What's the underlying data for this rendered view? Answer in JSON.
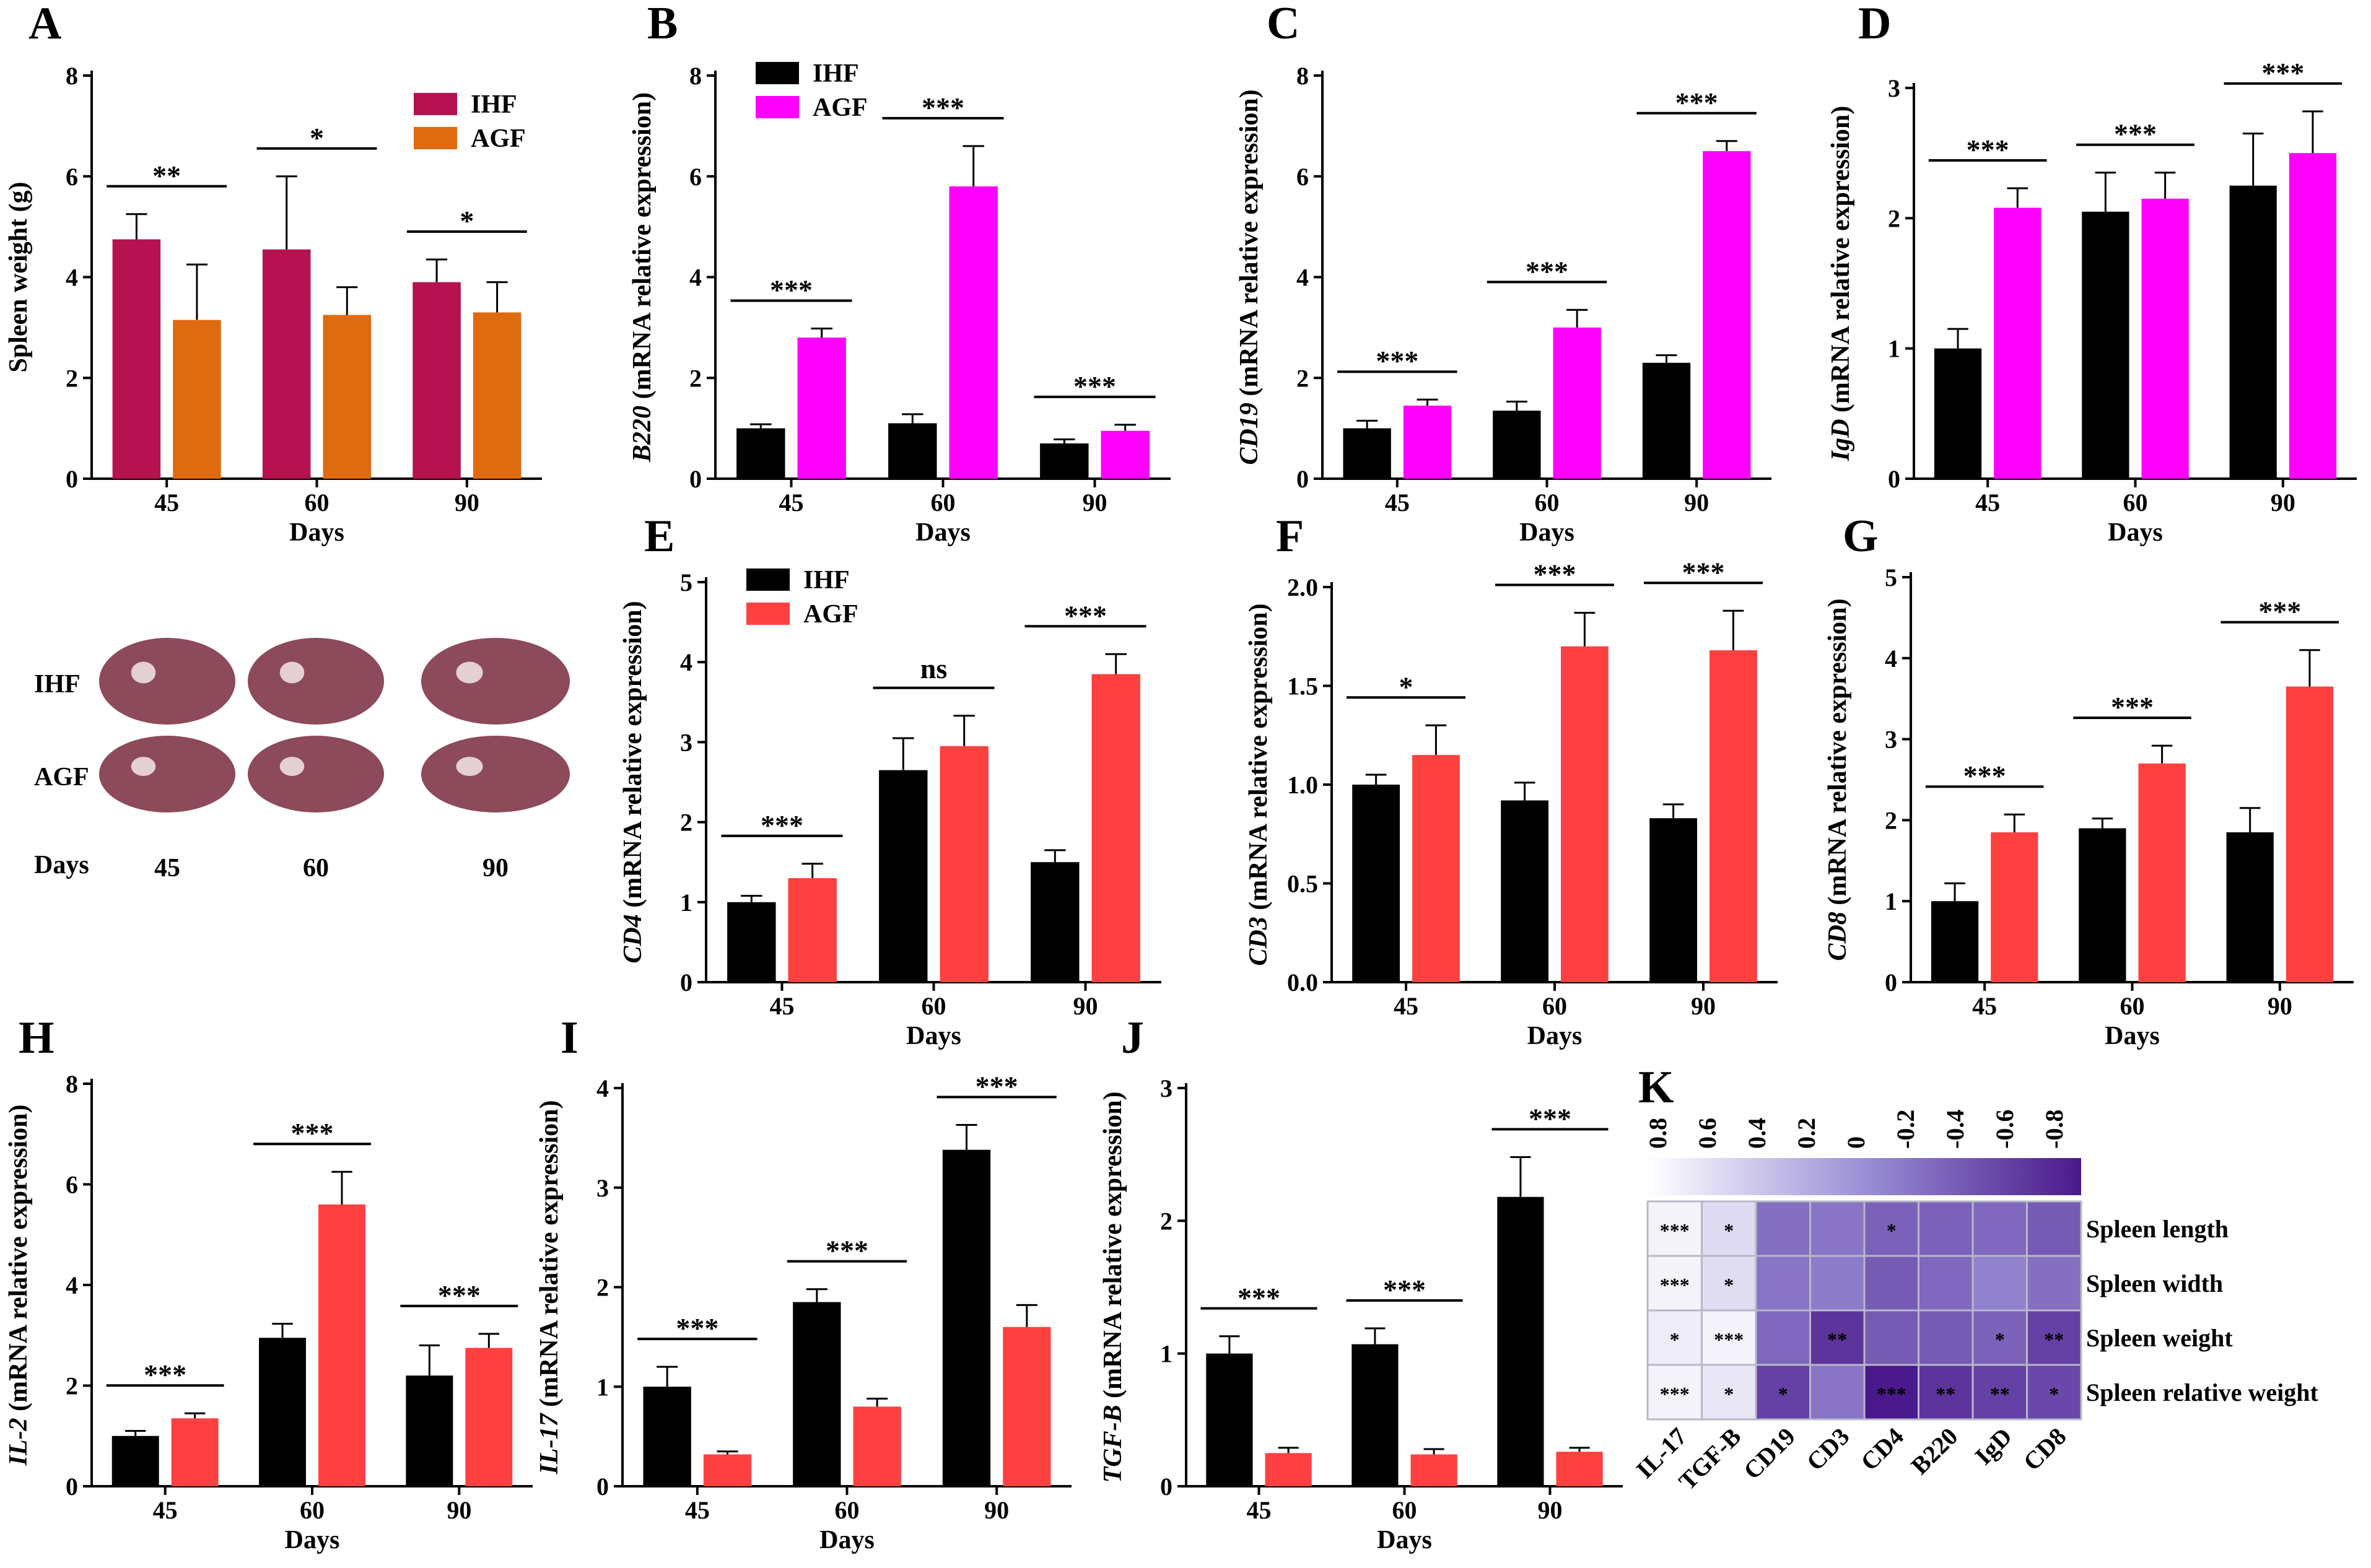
{
  "chart_data": [
    {
      "panel": "A",
      "type": "bar",
      "title": "",
      "xlabel": "Days",
      "ylabel": "Spleen weight (g)",
      "ylim": [
        0,
        8
      ],
      "yticks": [
        0,
        2,
        4,
        6,
        8
      ],
      "categories": [
        "45",
        "60",
        "90"
      ],
      "series": [
        {
          "name": "IHF",
          "color": "#b5124f",
          "values": [
            4.75,
            4.55,
            3.9
          ],
          "errors": [
            0.5,
            1.45,
            0.45
          ]
        },
        {
          "name": "AGF",
          "color": "#e06a10",
          "values": [
            3.15,
            3.25,
            3.3
          ],
          "errors": [
            1.1,
            0.55,
            0.6
          ]
        }
      ],
      "significance": [
        "**",
        "*",
        "*"
      ],
      "legend": "top-right"
    },
    {
      "panel": "B",
      "type": "bar",
      "xlabel": "Days",
      "ylabel": "(mRNA relative expression)",
      "ylabel_gene": "B220",
      "ylim": [
        0,
        8
      ],
      "yticks": [
        0,
        2,
        4,
        6,
        8
      ],
      "categories": [
        "45",
        "60",
        "90"
      ],
      "series": [
        {
          "name": "IHF",
          "color": "#000000",
          "values": [
            1.0,
            1.1,
            0.7
          ],
          "errors": [
            0.08,
            0.18,
            0.08
          ]
        },
        {
          "name": "AGF",
          "color": "#ff00ff",
          "values": [
            2.8,
            5.8,
            0.95
          ],
          "errors": [
            0.18,
            0.8,
            0.12
          ]
        }
      ],
      "significance": [
        "***",
        "***",
        "***"
      ],
      "legend": "top-left"
    },
    {
      "panel": "C",
      "type": "bar",
      "xlabel": "Days",
      "ylabel": "(mRNA relative expression)",
      "ylabel_gene": "CD19",
      "ylim": [
        0,
        8
      ],
      "yticks": [
        0,
        2,
        4,
        6,
        8
      ],
      "categories": [
        "45",
        "60",
        "90"
      ],
      "series": [
        {
          "name": "IHF",
          "color": "#000000",
          "values": [
            1.0,
            1.35,
            2.3
          ],
          "errors": [
            0.15,
            0.18,
            0.15
          ]
        },
        {
          "name": "AGF",
          "color": "#ff00ff",
          "values": [
            1.45,
            3.0,
            6.5
          ],
          "errors": [
            0.12,
            0.35,
            0.2
          ]
        }
      ],
      "significance": [
        "***",
        "***",
        "***"
      ]
    },
    {
      "panel": "D",
      "type": "bar",
      "xlabel": "Days",
      "ylabel": "(mRNA relative expression)",
      "ylabel_gene": "IgD",
      "ylim": [
        0,
        3
      ],
      "yticks": [
        0,
        1,
        2,
        3
      ],
      "categories": [
        "45",
        "60",
        "90"
      ],
      "series": [
        {
          "name": "IHF",
          "color": "#000000",
          "values": [
            1.0,
            2.05,
            2.25
          ],
          "errors": [
            0.15,
            0.3,
            0.4
          ]
        },
        {
          "name": "AGF",
          "color": "#ff00ff",
          "values": [
            2.08,
            2.15,
            2.5
          ],
          "errors": [
            0.15,
            0.2,
            0.32
          ]
        }
      ],
      "significance": [
        "***",
        "***",
        "***"
      ]
    },
    {
      "panel": "E",
      "type": "bar",
      "xlabel": "Days",
      "ylabel": "(mRNA relative expression)",
      "ylabel_gene": "CD4",
      "ylim": [
        0,
        5
      ],
      "yticks": [
        0,
        1,
        2,
        3,
        4,
        5
      ],
      "categories": [
        "45",
        "60",
        "90"
      ],
      "series": [
        {
          "name": "IHF",
          "color": "#000000",
          "values": [
            1.0,
            2.65,
            1.5
          ],
          "errors": [
            0.08,
            0.4,
            0.15
          ]
        },
        {
          "name": "AGF",
          "color": "#ff4040",
          "values": [
            1.3,
            2.95,
            3.85
          ],
          "errors": [
            0.18,
            0.38,
            0.25
          ]
        }
      ],
      "significance": [
        "***",
        "ns",
        "***"
      ],
      "legend": "top-left"
    },
    {
      "panel": "F",
      "type": "bar",
      "xlabel": "Days",
      "ylabel": "(mRNA relative expression)",
      "ylabel_gene": "CD3",
      "ylim": [
        0,
        2
      ],
      "yticks": [
        "0.0",
        "0.5",
        "1.0",
        "1.5",
        "2.0"
      ],
      "categories": [
        "45",
        "60",
        "90"
      ],
      "series": [
        {
          "name": "IHF",
          "color": "#000000",
          "values": [
            1.0,
            0.92,
            0.83
          ],
          "errors": [
            0.05,
            0.09,
            0.07
          ]
        },
        {
          "name": "AGF",
          "color": "#ff4040",
          "values": [
            1.15,
            1.7,
            1.68
          ],
          "errors": [
            0.15,
            0.17,
            0.2
          ]
        }
      ],
      "significance": [
        "*",
        "***",
        "***"
      ]
    },
    {
      "panel": "G",
      "type": "bar",
      "xlabel": "Days",
      "ylabel": "(mRNA relative expression)",
      "ylabel_gene": "CD8",
      "ylim": [
        0,
        5
      ],
      "yticks": [
        0,
        1,
        2,
        3,
        4,
        5
      ],
      "categories": [
        "45",
        "60",
        "90"
      ],
      "series": [
        {
          "name": "IHF",
          "color": "#000000",
          "values": [
            1.0,
            1.9,
            1.85
          ],
          "errors": [
            0.22,
            0.12,
            0.3
          ]
        },
        {
          "name": "AGF",
          "color": "#ff4040",
          "values": [
            1.85,
            2.7,
            3.65
          ],
          "errors": [
            0.22,
            0.22,
            0.45
          ]
        }
      ],
      "significance": [
        "***",
        "***",
        "***"
      ]
    },
    {
      "panel": "H",
      "type": "bar",
      "xlabel": "Days",
      "ylabel": "(mRNA relative expression)",
      "ylabel_gene": "IL-2",
      "ylim": [
        0,
        8
      ],
      "yticks": [
        0,
        2,
        4,
        6,
        8
      ],
      "categories": [
        "45",
        "60",
        "90"
      ],
      "series": [
        {
          "name": "IHF",
          "color": "#000000",
          "values": [
            1.0,
            2.95,
            2.2
          ],
          "errors": [
            0.1,
            0.28,
            0.6
          ]
        },
        {
          "name": "AGF",
          "color": "#ff4040",
          "values": [
            1.35,
            5.6,
            2.75
          ],
          "errors": [
            0.1,
            0.65,
            0.28
          ]
        }
      ],
      "significance": [
        "***",
        "***",
        "***"
      ]
    },
    {
      "panel": "I",
      "type": "bar",
      "xlabel": "Days",
      "ylabel": "(mRNA relative expression)",
      "ylabel_gene": "IL-17",
      "ylim": [
        0,
        4
      ],
      "yticks": [
        0,
        1,
        2,
        3,
        4
      ],
      "categories": [
        "45",
        "60",
        "90"
      ],
      "series": [
        {
          "name": "IHF",
          "color": "#000000",
          "values": [
            1.0,
            1.85,
            3.38
          ],
          "errors": [
            0.2,
            0.13,
            0.25
          ]
        },
        {
          "name": "AGF",
          "color": "#ff4040",
          "values": [
            0.32,
            0.8,
            1.6
          ],
          "errors": [
            0.03,
            0.08,
            0.22
          ]
        }
      ],
      "significance": [
        "***",
        "***",
        "***"
      ]
    },
    {
      "panel": "J",
      "type": "bar",
      "xlabel": "Days",
      "ylabel": "(mRNA relative expression)",
      "ylabel_gene": "TGF-B",
      "ylim": [
        0,
        3
      ],
      "yticks": [
        0,
        1,
        2,
        3
      ],
      "categories": [
        "45",
        "60",
        "90"
      ],
      "series": [
        {
          "name": "IHF",
          "color": "#000000",
          "values": [
            1.0,
            1.07,
            2.18
          ],
          "errors": [
            0.13,
            0.12,
            0.3
          ]
        },
        {
          "name": "AGF",
          "color": "#ff4040",
          "values": [
            0.25,
            0.24,
            0.26
          ],
          "errors": [
            0.04,
            0.04,
            0.03
          ]
        }
      ],
      "significance": [
        "***",
        "***",
        "***"
      ]
    },
    {
      "panel": "K",
      "type": "heatmap",
      "colorbar_ticks": [
        "0.8",
        "0.6",
        "0.4",
        "0.2",
        "0",
        "-0.2",
        "-0.4",
        "-0.6",
        "-0.8"
      ],
      "colorbar_range": [
        0.9,
        -0.9
      ],
      "columns": [
        "IL-17",
        "TGF-B",
        "CD19",
        "CD3",
        "CD4",
        "B220",
        "IgD",
        "CD8"
      ],
      "rows": [
        "Spleen length",
        "Spleen width",
        "Spleen weight",
        "Spleen relative weight"
      ],
      "values": [
        [
          0.8,
          0.6,
          -0.25,
          -0.2,
          -0.35,
          -0.35,
          -0.3,
          -0.4
        ],
        [
          0.8,
          0.62,
          -0.2,
          -0.15,
          -0.4,
          -0.3,
          -0.1,
          -0.25
        ],
        [
          0.75,
          0.8,
          -0.3,
          -0.7,
          -0.4,
          -0.4,
          -0.35,
          -0.6
        ],
        [
          0.8,
          0.7,
          -0.6,
          -0.2,
          -0.9,
          -0.7,
          -0.6,
          -0.55
        ]
      ],
      "stars": [
        [
          "***",
          "*",
          "",
          "",
          "*",
          "",
          "",
          ""
        ],
        [
          "***",
          "*",
          "",
          "",
          "",
          "",
          "",
          ""
        ],
        [
          "*",
          "***",
          "",
          "**",
          "",
          "",
          "*",
          "**"
        ],
        [
          "***",
          "*",
          "*",
          "",
          "***",
          "**",
          "**",
          "*"
        ]
      ]
    }
  ],
  "spleen_photos": {
    "row_labels": [
      "IHF",
      "AGF"
    ],
    "axis_label": "Days",
    "column_labels": [
      "45",
      "60",
      "90"
    ],
    "tissue_color": "#8c4a5a"
  }
}
